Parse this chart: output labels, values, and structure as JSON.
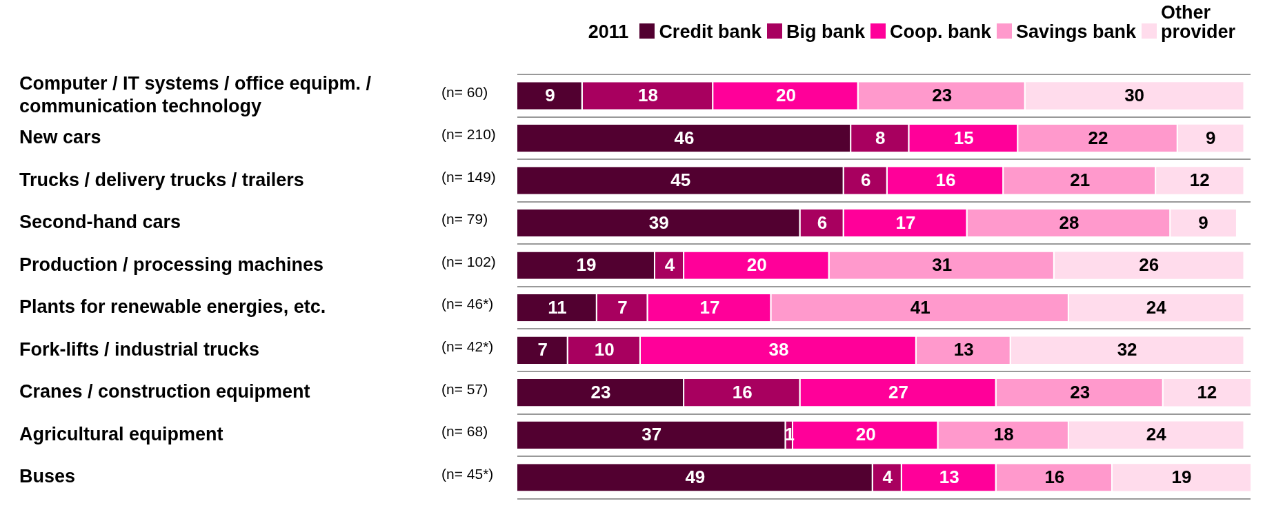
{
  "chart_data": {
    "type": "bar",
    "orientation": "horizontal",
    "stacked": true,
    "data_labels": true,
    "grid": "y",
    "legend": "top right",
    "legend_title": "2011",
    "tick_labels": "y",
    "categories": [
      "Computer / IT systems / office equipm. / communication technology",
      "New cars",
      "Trucks / delivery trucks / trailers",
      "Second-hand cars",
      "Production / processing machines",
      "Plants for renewable energies, etc.",
      "Fork-lifts / industrial trucks",
      "Cranes / construction equipment",
      "Agricultural equipment",
      "Buses"
    ],
    "annotations": [
      "(n= 60)",
      "(n= 210)",
      "(n= 149)",
      "(n= 79)",
      "(n= 102)",
      "(n= 46*)",
      "(n= 42*)",
      "(n= 57)",
      "(n= 68)",
      "(n= 45*)"
    ],
    "series": [
      {
        "name": "Credit bank",
        "color": "#520030",
        "values": [
          9,
          46,
          45,
          39,
          19,
          11,
          7,
          23,
          37,
          49
        ]
      },
      {
        "name": "Big bank",
        "color": "#a8005f",
        "values": [
          18,
          8,
          6,
          6,
          4,
          7,
          10,
          16,
          1,
          4
        ]
      },
      {
        "name": "Coop. bank",
        "color": "#ff0099",
        "values": [
          20,
          15,
          16,
          17,
          20,
          17,
          38,
          27,
          20,
          13
        ]
      },
      {
        "name": "Savings bank",
        "color": "#ff99cc",
        "values": [
          23,
          22,
          21,
          28,
          31,
          41,
          13,
          23,
          18,
          16
        ]
      },
      {
        "name": "Other provider",
        "color": "#ffdcec",
        "values": [
          30,
          9,
          12,
          9,
          26,
          24,
          32,
          12,
          24,
          19
        ]
      }
    ]
  }
}
